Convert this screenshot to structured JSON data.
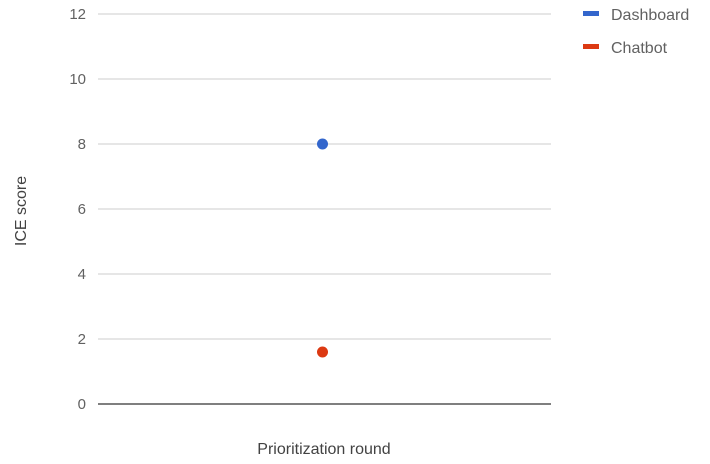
{
  "chart_data": {
    "type": "scatter",
    "xlabel": "Prioritization round",
    "ylabel": "ICE score",
    "ylim": [
      0,
      12
    ],
    "yticks": [
      "0",
      "2",
      "4",
      "6",
      "8",
      "10",
      "12"
    ],
    "grid": true,
    "legend_position": "top-right",
    "series": [
      {
        "name": "Dashboard",
        "color": "#3366cc",
        "values": [
          8
        ]
      },
      {
        "name": "Chatbot",
        "color": "#dc3912",
        "values": [
          1.6
        ]
      }
    ]
  }
}
